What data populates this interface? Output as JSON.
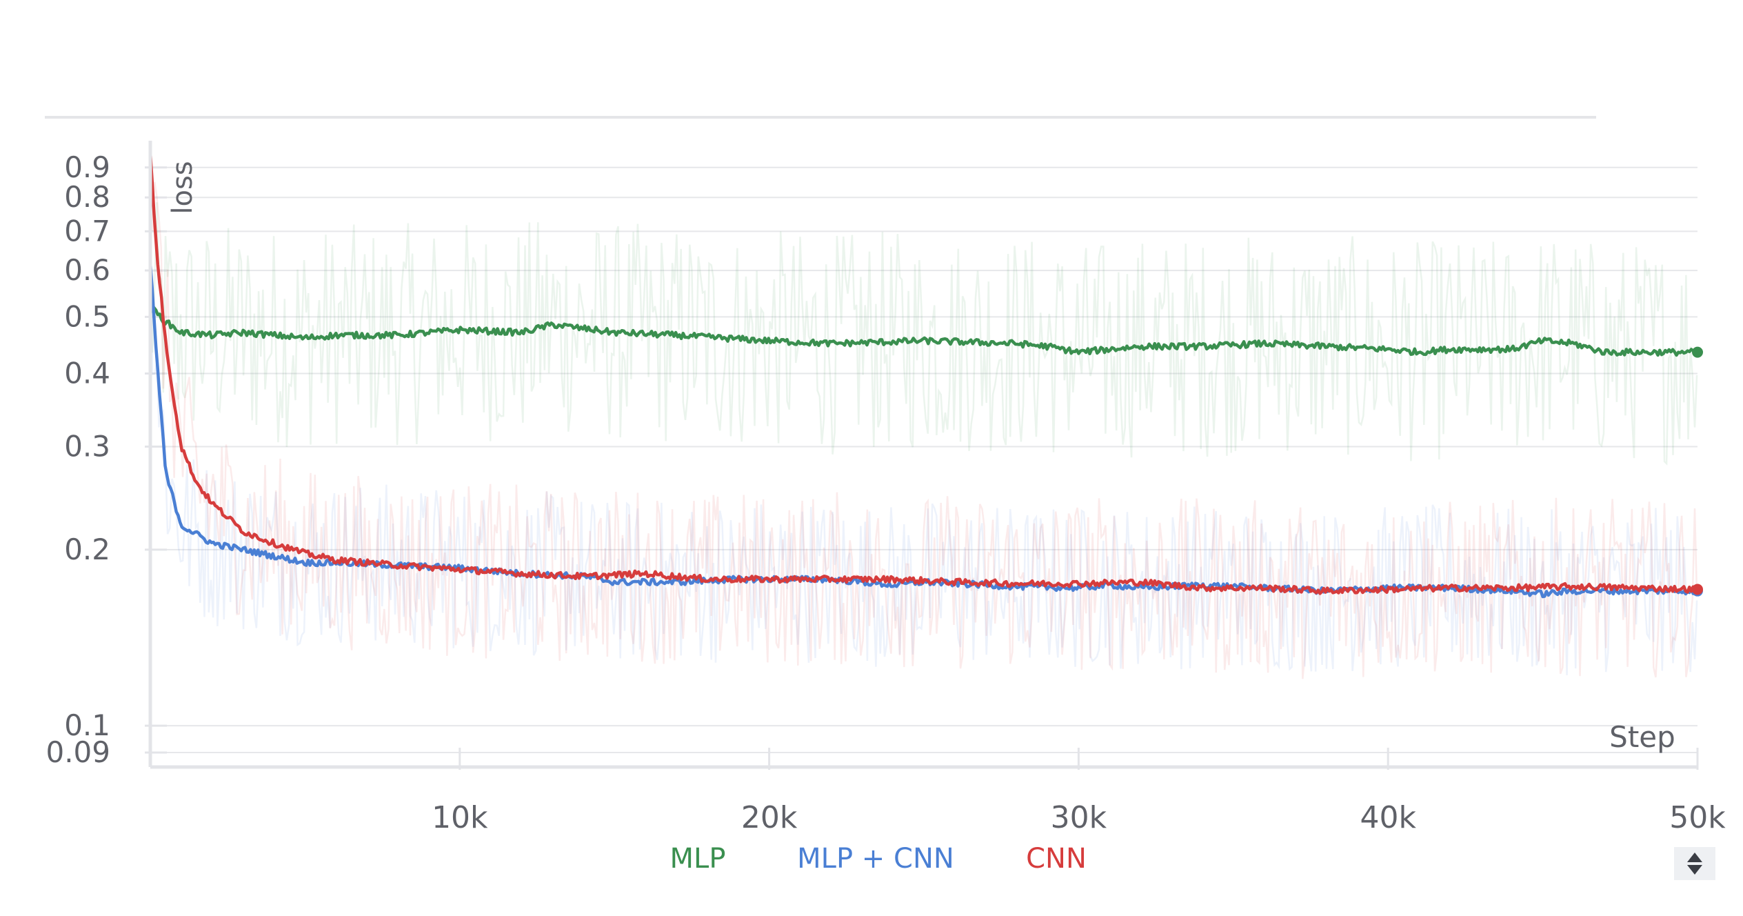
{
  "chart_data": {
    "type": "line",
    "y_label": "loss",
    "x_label": "Step",
    "y_scale": "log",
    "y_ticks": [
      0.09,
      0.1,
      0.2,
      0.3,
      0.4,
      0.5,
      0.6,
      0.7,
      0.8,
      0.9
    ],
    "y_tick_labels": [
      "0.09",
      "0.1",
      "0.2",
      "0.3",
      "0.4",
      "0.5",
      "0.6",
      "0.7",
      "0.8",
      "0.9"
    ],
    "x_ticks": [
      10000,
      20000,
      30000,
      40000,
      50000
    ],
    "x_tick_labels": [
      "10k",
      "20k",
      "30k",
      "40k",
      "50k"
    ],
    "xlim": [
      0,
      50000
    ],
    "ylim": [
      0.085,
      1.0
    ],
    "grid": true,
    "legend_position": "bottom-center",
    "series": [
      {
        "name": "MLP",
        "color": "#3a8f4f",
        "x": [
          0,
          500,
          1000,
          2000,
          3000,
          4000,
          5000,
          6000,
          8000,
          10000,
          12000,
          13000,
          15000,
          17000,
          20000,
          22000,
          25000,
          28000,
          29000,
          30000,
          32000,
          34000,
          36000,
          38000,
          40000,
          41000,
          42000,
          44000,
          45000,
          46000,
          47000,
          48000,
          50000
        ],
        "values": [
          0.52,
          0.49,
          0.47,
          0.465,
          0.47,
          0.465,
          0.46,
          0.465,
          0.465,
          0.475,
          0.47,
          0.485,
          0.47,
          0.465,
          0.455,
          0.45,
          0.455,
          0.45,
          0.445,
          0.435,
          0.445,
          0.445,
          0.45,
          0.445,
          0.44,
          0.435,
          0.44,
          0.44,
          0.455,
          0.45,
          0.435,
          0.435,
          0.435
        ]
      },
      {
        "name": "MLP + CNN",
        "color": "#4a7fd4",
        "x": [
          0,
          200,
          500,
          1000,
          2000,
          3000,
          4000,
          5000,
          6000,
          8000,
          10000,
          12000,
          14000,
          15000,
          17000,
          19000,
          20000,
          22000,
          24000,
          25000,
          26000,
          28000,
          30000,
          31000,
          32000,
          34000,
          36000,
          38000,
          40000,
          42000,
          44000,
          45000,
          46000,
          48000,
          50000
        ],
        "values": [
          0.62,
          0.43,
          0.27,
          0.22,
          0.205,
          0.2,
          0.195,
          0.19,
          0.19,
          0.188,
          0.186,
          0.182,
          0.18,
          0.176,
          0.176,
          0.178,
          0.178,
          0.178,
          0.174,
          0.176,
          0.175,
          0.173,
          0.172,
          0.174,
          0.172,
          0.174,
          0.172,
          0.17,
          0.172,
          0.172,
          0.17,
          0.168,
          0.17,
          0.17,
          0.17
        ]
      },
      {
        "name": "CNN",
        "color": "#d63c3c",
        "x": [
          0,
          200,
          500,
          800,
          1000,
          1500,
          2000,
          3000,
          4000,
          5000,
          6000,
          8000,
          10000,
          12000,
          14000,
          16000,
          18000,
          20000,
          22000,
          24000,
          25000,
          26000,
          28000,
          30000,
          32000,
          34000,
          36000,
          38000,
          40000,
          42000,
          44000,
          46000,
          48000,
          50000
        ],
        "values": [
          0.95,
          0.65,
          0.45,
          0.35,
          0.3,
          0.26,
          0.24,
          0.215,
          0.205,
          0.197,
          0.192,
          0.188,
          0.185,
          0.182,
          0.18,
          0.182,
          0.178,
          0.178,
          0.178,
          0.178,
          0.177,
          0.176,
          0.175,
          0.175,
          0.176,
          0.172,
          0.172,
          0.17,
          0.171,
          0.172,
          0.172,
          0.173,
          0.172,
          0.171
        ]
      }
    ]
  }
}
